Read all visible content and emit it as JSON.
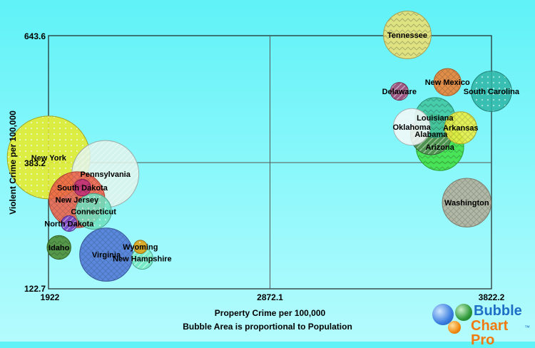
{
  "chart_data": {
    "type": "bubble",
    "title": "",
    "xlabel": "Property Crime per 100,000",
    "ylabel": "Violent Crime per 100,000",
    "subtitle": "Bubble Area is proportional to Population",
    "xlim": [
      1922,
      3822.2
    ],
    "ylim": [
      122.7,
      643.6
    ],
    "xticks": [
      "1922",
      "2872.1",
      "3822.2"
    ],
    "yticks": [
      "122.7",
      "383.2",
      "643.6"
    ],
    "grid": "quadrant lines at axis midpoints",
    "legend": "none",
    "points": [
      {
        "name": "New York",
        "x": 1923,
        "y": 393,
        "size": 19.4,
        "color": "#e8ec2a"
      },
      {
        "name": "Pennsylvania",
        "x": 2166,
        "y": 359,
        "size": 12.7,
        "color": "#dff3ea"
      },
      {
        "name": "South Dakota",
        "x": 2067,
        "y": 331,
        "size": 0.8,
        "color": "#c0307a"
      },
      {
        "name": "New Jersey",
        "x": 2044,
        "y": 306,
        "size": 8.8,
        "color": "#f06048"
      },
      {
        "name": "Connecticut",
        "x": 2115,
        "y": 282,
        "size": 3.6,
        "color": "#6ee0c0"
      },
      {
        "name": "North Dakota",
        "x": 2010,
        "y": 257,
        "size": 0.7,
        "color": "#7040c8"
      },
      {
        "name": "Idaho",
        "x": 1967,
        "y": 208,
        "size": 1.6,
        "color": "#4a8a30"
      },
      {
        "name": "Virginia",
        "x": 2170,
        "y": 193,
        "size": 8.0,
        "color": "#5078d8"
      },
      {
        "name": "Wyoming",
        "x": 2316,
        "y": 209,
        "size": 0.5,
        "color": "#e0a010"
      },
      {
        "name": "New Hampshire",
        "x": 2324,
        "y": 185,
        "size": 1.3,
        "color": "#70e8c0"
      },
      {
        "name": "Tennessee",
        "x": 3461,
        "y": 645,
        "size": 6.4,
        "color": "#f0e070"
      },
      {
        "name": "New Mexico",
        "x": 3633,
        "y": 548,
        "size": 2.1,
        "color": "#f08030"
      },
      {
        "name": "South Carolina",
        "x": 3822,
        "y": 529,
        "size": 4.6,
        "color": "#30b8a8"
      },
      {
        "name": "Delaware",
        "x": 3427,
        "y": 529,
        "size": 0.9,
        "color": "#a04070"
      },
      {
        "name": "Louisiana",
        "x": 3580,
        "y": 475,
        "size": 4.5,
        "color": "#40c8a0"
      },
      {
        "name": "Arkansas",
        "x": 3690,
        "y": 454,
        "size": 2.9,
        "color": "#f0f040"
      },
      {
        "name": "Oklahoma",
        "x": 3480,
        "y": 456,
        "size": 3.8,
        "color": "#f4f8f8"
      },
      {
        "name": "Alabama",
        "x": 3563,
        "y": 441,
        "size": 4.8,
        "color": "#508850"
      },
      {
        "name": "Arizona",
        "x": 3601,
        "y": 415,
        "size": 6.4,
        "color": "#40e040"
      },
      {
        "name": "Washington",
        "x": 3716,
        "y": 300,
        "size": 6.7,
        "color": "#b4ae98"
      }
    ]
  },
  "logo": {
    "word1": "Bubble",
    "word2": "Chart Pro",
    "tm": "™"
  }
}
